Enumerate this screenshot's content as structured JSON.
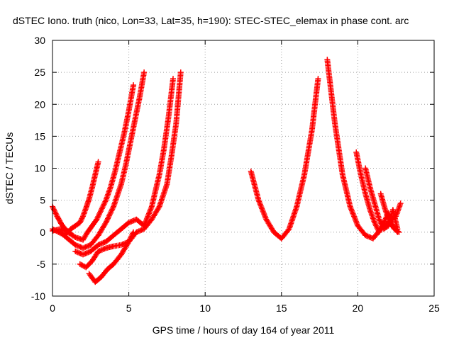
{
  "chart_data": {
    "type": "scatter",
    "title": "dSTEC Iono. truth (nico, Lon=33, Lat=35, h=190): STEC-STEC_elemax in phase cont. arc",
    "xlabel": "GPS time / hours of day 164 of year 2011",
    "ylabel": "dSTEC  / TECUs",
    "xlim": [
      0,
      25
    ],
    "ylim": [
      -10,
      30
    ],
    "xticks": [
      0,
      5,
      10,
      15,
      20,
      25
    ],
    "yticks": [
      -10,
      -5,
      0,
      5,
      10,
      15,
      20,
      25,
      30
    ],
    "grid": true,
    "marker": "plus",
    "color": "#ff0000",
    "series": [
      {
        "x": [
          0.0,
          0.3,
          0.6,
          0.9,
          1.2
        ],
        "y": [
          4.0,
          2.5,
          1.2,
          0.3,
          -0.2
        ]
      },
      {
        "x": [
          0.0,
          0.4,
          0.8,
          1.0,
          1.2,
          1.5,
          1.8,
          2.0,
          2.2,
          2.4,
          2.6,
          2.8,
          3.0
        ],
        "y": [
          0.5,
          0.0,
          -0.5,
          0.0,
          0.5,
          1.0,
          1.5,
          2.5,
          3.8,
          5.2,
          7.0,
          9.0,
          11.0
        ]
      },
      {
        "x": [
          0.0,
          0.5,
          1.0,
          1.5,
          2.0,
          2.3,
          2.6,
          2.9,
          3.2,
          3.5,
          3.8,
          4.1,
          4.4,
          4.7,
          5.0,
          5.3
        ],
        "y": [
          0.2,
          0.5,
          0.0,
          -0.8,
          -1.2,
          0.0,
          1.0,
          2.0,
          3.5,
          5.0,
          7.0,
          9.5,
          12.5,
          15.5,
          19.0,
          23.0
        ]
      },
      {
        "x": [
          0.5,
          1.0,
          1.5,
          2.0,
          2.5,
          3.0,
          3.5,
          4.0,
          4.5,
          4.8,
          5.1,
          5.4,
          5.7,
          6.0
        ],
        "y": [
          0.0,
          -1.0,
          -2.0,
          -2.5,
          -2.0,
          -0.5,
          1.5,
          4.0,
          7.5,
          10.5,
          14.0,
          17.5,
          21.0,
          25.0
        ]
      },
      {
        "x": [
          1.5,
          2.0,
          2.5,
          3.0,
          3.5,
          4.0,
          4.5,
          5.0,
          5.5,
          6.0,
          6.5,
          7.0,
          7.3,
          7.6,
          7.9
        ],
        "y": [
          -3.0,
          -3.5,
          -3.0,
          -2.0,
          -1.5,
          -0.5,
          0.5,
          1.5,
          2.0,
          1.0,
          4.0,
          9.0,
          13.0,
          18.0,
          24.0
        ]
      },
      {
        "x": [
          1.8,
          2.2,
          2.6,
          3.0,
          3.5,
          4.0,
          4.5,
          5.0,
          5.5,
          6.0,
          6.5,
          7.0,
          7.5,
          7.8,
          8.1,
          8.4
        ],
        "y": [
          -5.0,
          -5.5,
          -4.5,
          -3.0,
          -2.5,
          -2.2,
          -2.0,
          -1.5,
          0.0,
          0.5,
          2.0,
          4.0,
          7.5,
          12.0,
          17.0,
          25.0
        ]
      },
      {
        "x": [
          2.4,
          2.8,
          3.2,
          3.6,
          4.0,
          4.5,
          5.0,
          5.3
        ],
        "y": [
          -6.5,
          -7.8,
          -7.0,
          -5.8,
          -5.0,
          -3.5,
          -1.5,
          0.0
        ]
      },
      {
        "x": [
          13.0,
          13.5,
          14.0,
          14.5,
          15.0,
          15.5,
          16.0,
          16.5,
          17.0,
          17.4
        ],
        "y": [
          9.5,
          5.0,
          2.0,
          0.0,
          -1.0,
          0.5,
          4.0,
          9.0,
          16.0,
          24.0
        ]
      },
      {
        "x": [
          18.0,
          18.5,
          19.0,
          19.5,
          20.0,
          20.5,
          21.0,
          21.5,
          22.0,
          22.5,
          22.8
        ],
        "y": [
          27.0,
          17.0,
          9.0,
          4.0,
          1.0,
          -0.5,
          -1.0,
          0.5,
          1.5,
          2.5,
          4.5
        ]
      },
      {
        "x": [
          19.9,
          20.2,
          20.5,
          20.8,
          21.1,
          21.4,
          21.7,
          22.0,
          22.3,
          22.6
        ],
        "y": [
          12.5,
          9.0,
          6.0,
          3.5,
          1.5,
          0.0,
          1.5,
          3.0,
          1.0,
          0.0
        ]
      },
      {
        "x": [
          20.5,
          20.8,
          21.1,
          21.4,
          21.7,
          22.0,
          22.3,
          22.6
        ],
        "y": [
          10.0,
          7.0,
          4.5,
          2.0,
          0.5,
          1.0,
          3.5,
          0.5
        ]
      },
      {
        "x": [
          21.5,
          21.8,
          22.1,
          22.4,
          22.7
        ],
        "y": [
          6.0,
          3.5,
          1.5,
          0.5,
          0.0
        ]
      }
    ]
  }
}
